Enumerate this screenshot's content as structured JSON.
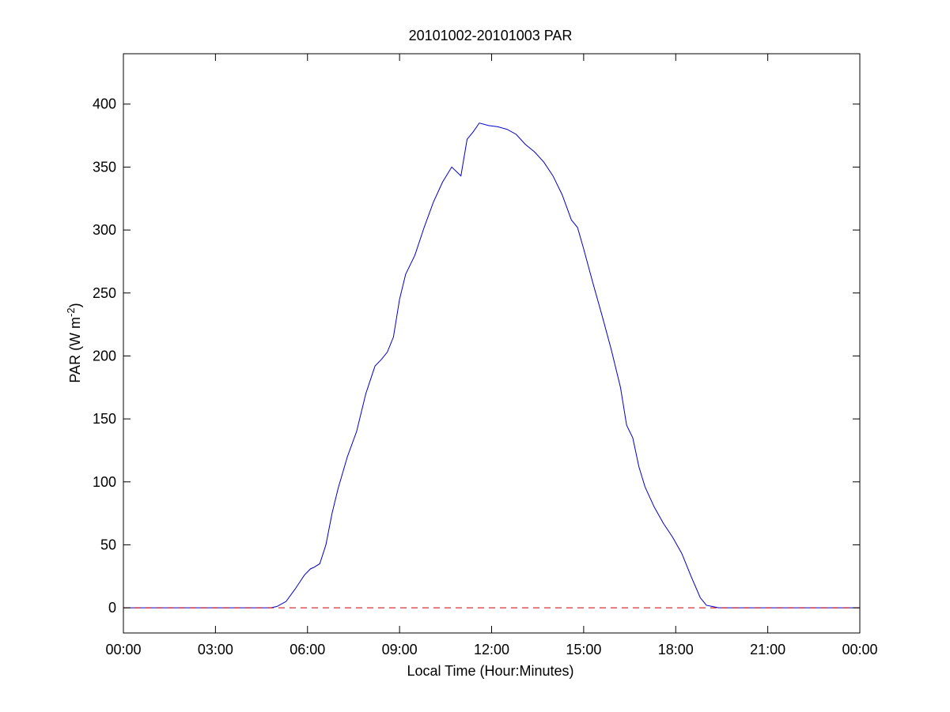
{
  "chart_data": {
    "type": "line",
    "title": "20101002-20101003 PAR",
    "xlabel": "Local Time (Hour:Minutes)",
    "ylabel": {
      "text": "PAR (W m",
      "superscript": "-2",
      "suffix": ")"
    },
    "xlim": [
      0,
      24
    ],
    "ylim": [
      -20,
      440
    ],
    "x_ticks": [
      0,
      3,
      6,
      9,
      12,
      15,
      18,
      21,
      24
    ],
    "x_tick_labels": [
      "00:00",
      "03:00",
      "06:00",
      "09:00",
      "12:00",
      "15:00",
      "18:00",
      "21:00",
      "00:00"
    ],
    "y_ticks": [
      0,
      50,
      100,
      150,
      200,
      250,
      300,
      350,
      400
    ],
    "y_tick_labels": [
      "0",
      "50",
      "100",
      "150",
      "200",
      "250",
      "300",
      "350",
      "400"
    ],
    "grid": false,
    "series": [
      {
        "color": "#0000c8",
        "style": "solid",
        "x": [
          0,
          4.8,
          5.0,
          5.3,
          5.6,
          5.9,
          6.1,
          6.2,
          6.4,
          6.6,
          6.8,
          7.0,
          7.3,
          7.6,
          7.9,
          8.2,
          8.4,
          8.6,
          8.8,
          9.0,
          9.2,
          9.5,
          9.8,
          10.1,
          10.4,
          10.7,
          11.0,
          11.2,
          11.4,
          11.6,
          11.9,
          12.2,
          12.5,
          12.8,
          13.1,
          13.4,
          13.7,
          14.0,
          14.3,
          14.6,
          14.8,
          15.0,
          15.3,
          15.6,
          15.9,
          16.2,
          16.4,
          16.6,
          16.8,
          17.0,
          17.3,
          17.6,
          17.9,
          18.2,
          18.5,
          18.8,
          19.0,
          19.2,
          19.4,
          24
        ],
        "y": [
          0,
          0,
          1,
          5,
          15,
          26,
          31,
          32,
          35,
          50,
          75,
          95,
          120,
          140,
          170,
          192,
          197,
          203,
          215,
          245,
          265,
          280,
          302,
          322,
          338,
          350,
          343,
          372,
          378,
          385,
          383,
          382,
          380,
          376,
          368,
          362,
          354,
          343,
          328,
          308,
          302,
          285,
          258,
          232,
          205,
          175,
          145,
          135,
          112,
          96,
          80,
          67,
          56,
          43,
          25,
          8,
          2,
          1,
          0,
          0
        ]
      },
      {
        "color": "#c80000",
        "style": "dashed",
        "x": [
          0,
          24
        ],
        "y": [
          0,
          0
        ]
      }
    ]
  }
}
